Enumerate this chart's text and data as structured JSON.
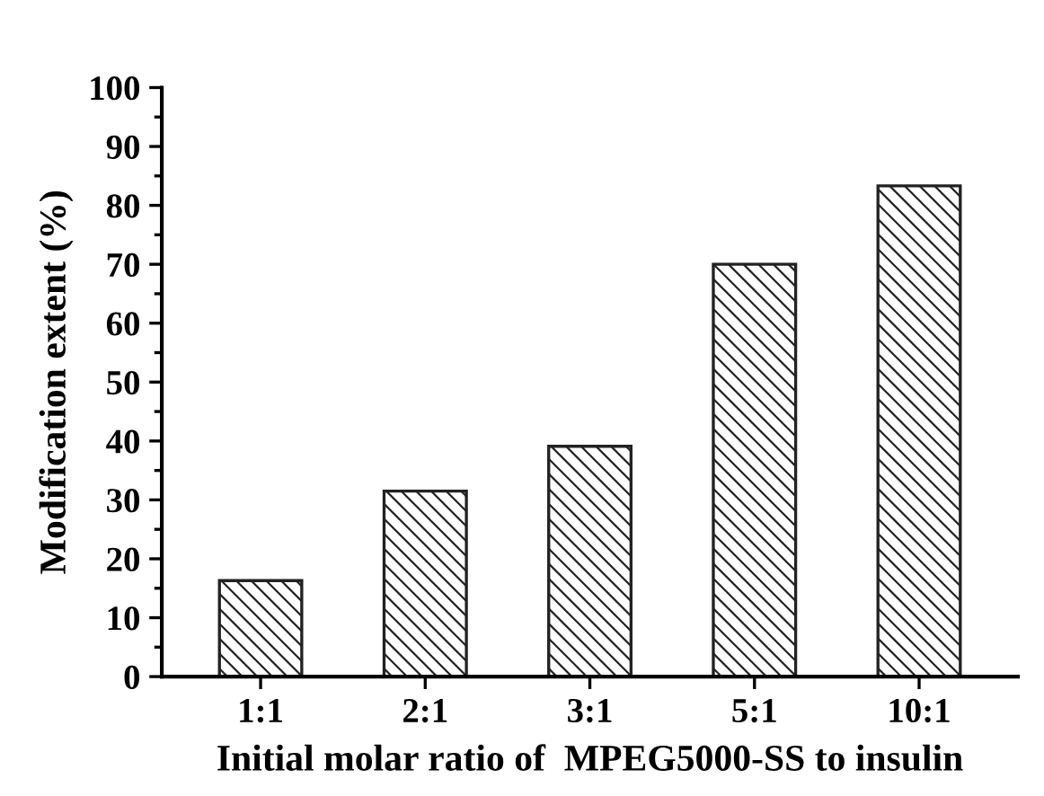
{
  "chart_data": {
    "type": "bar",
    "categories": [
      "1:1",
      "2:1",
      "3:1",
      "5:1",
      "10:1"
    ],
    "values": [
      16.3,
      31.5,
      39.1,
      70.0,
      83.3
    ],
    "color": "#222222",
    "xlabel": "Initial molar ratio of  MPEG5000-SS to insulin",
    "ylabel": "Modification extent (%)",
    "ylim": [
      0,
      100
    ],
    "yticks": [
      0,
      10,
      20,
      30,
      40,
      50,
      60,
      70,
      80,
      90,
      100
    ],
    "grid": false,
    "legend": false
  }
}
